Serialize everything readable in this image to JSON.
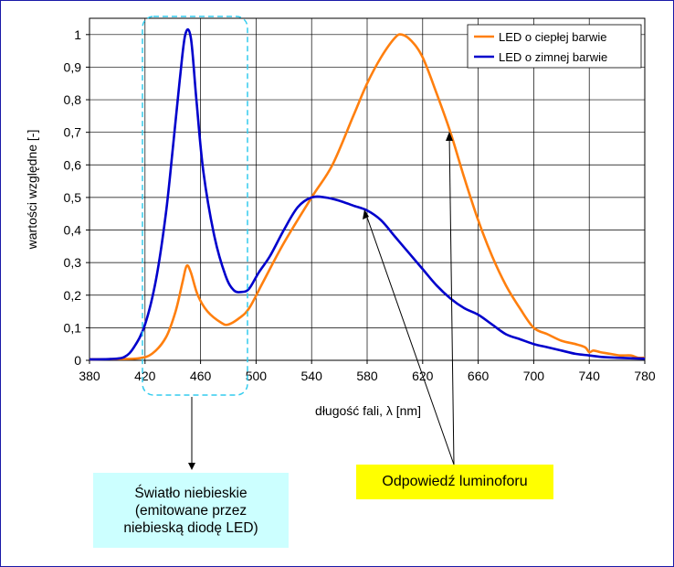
{
  "chart_data": {
    "type": "line",
    "title": "",
    "xlabel": "długość fali, λ [nm]",
    "ylabel": "wartości względne [-]",
    "xlim": [
      380,
      780
    ],
    "ylim": [
      0,
      1.05
    ],
    "x_ticks": [
      "380",
      "420",
      "460",
      "500",
      "540",
      "580",
      "620",
      "660",
      "700",
      "740",
      "780"
    ],
    "y_ticks": [
      "0",
      "0,1",
      "0,2",
      "0,3",
      "0,4",
      "0,5",
      "0,6",
      "0,7",
      "0,8",
      "0,9",
      "1"
    ],
    "grid": true,
    "legend_position": "top-right",
    "series": [
      {
        "name": "LED o ciepłej barwie",
        "color": "#ff7f0e",
        "points": [
          [
            380,
            0.003
          ],
          [
            400,
            0.004
          ],
          [
            415,
            0.006
          ],
          [
            425,
            0.02
          ],
          [
            435,
            0.07
          ],
          [
            442,
            0.15
          ],
          [
            447,
            0.24
          ],
          [
            450,
            0.29
          ],
          [
            453,
            0.27
          ],
          [
            458,
            0.2
          ],
          [
            465,
            0.15
          ],
          [
            475,
            0.115
          ],
          [
            480,
            0.11
          ],
          [
            488,
            0.13
          ],
          [
            495,
            0.16
          ],
          [
            505,
            0.24
          ],
          [
            520,
            0.36
          ],
          [
            540,
            0.5
          ],
          [
            555,
            0.6
          ],
          [
            570,
            0.75
          ],
          [
            580,
            0.85
          ],
          [
            590,
            0.93
          ],
          [
            600,
            0.99
          ],
          [
            605,
            1.0
          ],
          [
            612,
            0.98
          ],
          [
            620,
            0.93
          ],
          [
            630,
            0.82
          ],
          [
            640,
            0.7
          ],
          [
            650,
            0.56
          ],
          [
            660,
            0.43
          ],
          [
            670,
            0.32
          ],
          [
            680,
            0.23
          ],
          [
            690,
            0.16
          ],
          [
            700,
            0.1
          ],
          [
            710,
            0.08
          ],
          [
            720,
            0.06
          ],
          [
            730,
            0.05
          ],
          [
            737,
            0.04
          ],
          [
            740,
            0.025
          ],
          [
            743,
            0.03
          ],
          [
            748,
            0.025
          ],
          [
            755,
            0.02
          ],
          [
            762,
            0.015
          ],
          [
            770,
            0.015
          ],
          [
            775,
            0.008
          ],
          [
            780,
            0.008
          ]
        ]
      },
      {
        "name": "LED o zimnej barwie",
        "color": "#0000cc",
        "points": [
          [
            380,
            0.003
          ],
          [
            395,
            0.004
          ],
          [
            405,
            0.01
          ],
          [
            412,
            0.04
          ],
          [
            420,
            0.11
          ],
          [
            428,
            0.25
          ],
          [
            435,
            0.45
          ],
          [
            440,
            0.65
          ],
          [
            445,
            0.86
          ],
          [
            449,
            1.0
          ],
          [
            453,
            0.99
          ],
          [
            457,
            0.8
          ],
          [
            462,
            0.58
          ],
          [
            470,
            0.38
          ],
          [
            478,
            0.26
          ],
          [
            484,
            0.215
          ],
          [
            490,
            0.21
          ],
          [
            495,
            0.22
          ],
          [
            502,
            0.27
          ],
          [
            510,
            0.32
          ],
          [
            520,
            0.4
          ],
          [
            530,
            0.47
          ],
          [
            540,
            0.5
          ],
          [
            550,
            0.5
          ],
          [
            560,
            0.49
          ],
          [
            570,
            0.475
          ],
          [
            580,
            0.46
          ],
          [
            590,
            0.43
          ],
          [
            600,
            0.38
          ],
          [
            610,
            0.33
          ],
          [
            620,
            0.28
          ],
          [
            630,
            0.23
          ],
          [
            640,
            0.19
          ],
          [
            650,
            0.16
          ],
          [
            660,
            0.14
          ],
          [
            670,
            0.11
          ],
          [
            680,
            0.08
          ],
          [
            690,
            0.065
          ],
          [
            700,
            0.05
          ],
          [
            710,
            0.04
          ],
          [
            720,
            0.03
          ],
          [
            730,
            0.02
          ],
          [
            740,
            0.015
          ],
          [
            750,
            0.01
          ],
          [
            760,
            0.008
          ],
          [
            780,
            0.005
          ]
        ]
      }
    ],
    "annotations": {
      "blue_light": "Światło niebieskie\n(emitowane przez\nniebieską diodę LED)",
      "phosphor": "Odpowiedź luminoforu"
    }
  }
}
